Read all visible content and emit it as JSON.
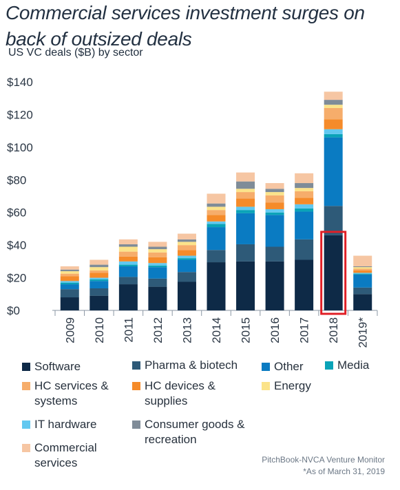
{
  "title": "Commercial services investment surges on back of outsized deals",
  "subtitle": "US VC deals ($B) by sector",
  "source": "PitchBook-NVCA Venture Monitor",
  "note": "*As of March 31, 2019",
  "colors": {
    "Software": "#0e2a47",
    "Pharma & biotech": "#2e5a78",
    "Other": "#0a7bc2",
    "Media": "#0aa3b8",
    "HC services & systems": "#f6ad6b",
    "HC devices & supplies": "#f58b2a",
    "Energy": "#fbe38a",
    "IT hardware": "#62c8f0",
    "Consumer goods & recreation": "#7f8c98",
    "Commercial services": "#f6c6a3",
    "highlight": "#e01f26"
  },
  "chart_data": {
    "type": "bar",
    "stacked": true,
    "title": "Commercial services investment surges on back of outsized deals",
    "subtitle": "US VC deals ($B) by sector",
    "categories": [
      "2009",
      "2010",
      "2011",
      "2012",
      "2013",
      "2014",
      "2015",
      "2016",
      "2017",
      "2018",
      "2019*"
    ],
    "ylim": [
      0,
      140
    ],
    "yticks": [
      0,
      20,
      40,
      60,
      80,
      100,
      120,
      140
    ],
    "ytick_labels": [
      "$0",
      "$20",
      "$40",
      "$60",
      "$80",
      "$100",
      "$120",
      "$140"
    ],
    "highlight_category": "2018",
    "legend_position": "bottom",
    "series": [
      {
        "name": "Software",
        "values": [
          8,
          9,
          16,
          14.5,
          17.5,
          29.5,
          30,
          30,
          31,
          46,
          10
        ]
      },
      {
        "name": "Pharma & biotech",
        "values": [
          5,
          4.5,
          4.5,
          5,
          6,
          7.5,
          10.5,
          9,
          12.5,
          18,
          4
        ]
      },
      {
        "name": "Other",
        "values": [
          3,
          4.5,
          6.5,
          7,
          7.5,
          14,
          19,
          19.5,
          17,
          42,
          8
        ]
      },
      {
        "name": "Media",
        "values": [
          1,
          1,
          1,
          1,
          1,
          2,
          2,
          1.5,
          2,
          2,
          0.5
        ]
      },
      {
        "name": "IT hardware",
        "values": [
          1,
          1,
          2,
          1.5,
          1.5,
          1.5,
          2,
          2,
          2.5,
          3,
          0.5
        ]
      },
      {
        "name": "HC devices & supplies",
        "values": [
          3,
          3,
          3,
          3.5,
          3.5,
          4,
          5,
          4,
          4,
          6,
          1.5
        ]
      },
      {
        "name": "HC services & systems",
        "values": [
          1.5,
          1.5,
          3,
          3,
          3,
          3,
          4,
          4.5,
          4,
          7,
          1
        ]
      },
      {
        "name": "Energy",
        "values": [
          1.5,
          2,
          3,
          2,
          2,
          2,
          2,
          2,
          2,
          2,
          1
        ]
      },
      {
        "name": "Consumer goods & recreation",
        "values": [
          1,
          1.5,
          1.5,
          1.5,
          1.5,
          2,
          4.5,
          2,
          3,
          3,
          0.5
        ]
      },
      {
        "name": "Commercial services",
        "values": [
          2,
          3,
          3,
          3,
          3.5,
          6,
          5.5,
          3.5,
          6,
          5,
          6.5
        ]
      }
    ]
  },
  "legend": [
    {
      "label": "Software",
      "key": "Software"
    },
    {
      "label": "Pharma & biotech",
      "key": "Pharma & biotech"
    },
    {
      "label": "Other",
      "key": "Other"
    },
    {
      "label": "Media",
      "key": "Media"
    },
    {
      "label": "HC services & systems",
      "key": "HC services & systems"
    },
    {
      "label": "HC devices & supplies",
      "key": "HC devices & supplies"
    },
    {
      "label": "Energy",
      "key": "Energy"
    },
    {
      "label": "IT hardware",
      "key": "IT hardware"
    },
    {
      "label": "Consumer goods & recreation",
      "key": "Consumer goods & recreation"
    },
    {
      "label": "Commercial services",
      "key": "Commercial services"
    }
  ]
}
